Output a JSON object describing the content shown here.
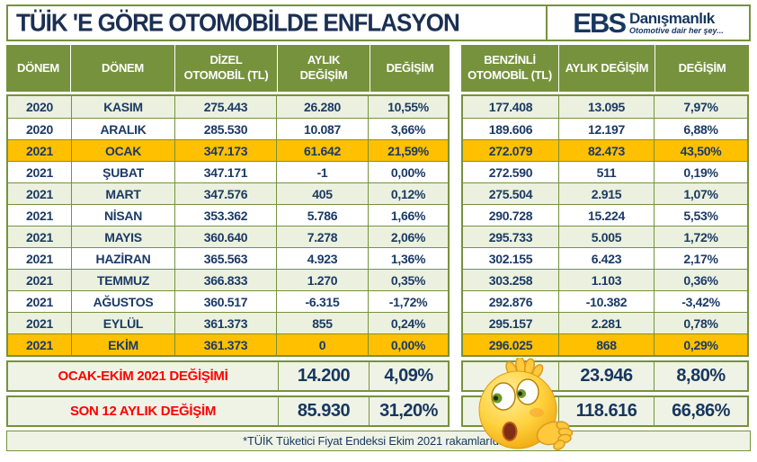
{
  "title": "TÜİK 'E GÖRE OTOMOBİLDE ENFLASYON",
  "logo": {
    "abbr": "EBS",
    "name": "Danışmanlık",
    "tagline": "Otomotive dair her şey..."
  },
  "chart_data": {
    "type": "table",
    "title": "TÜİK 'E GÖRE OTOMOBİLDE ENFLASYON",
    "columns": [
      "DÖNEM",
      "DÖNEM",
      "DİZEL OTOMOBİL (TL)",
      "AYLIK DEĞİŞİM",
      "DEĞİŞİM",
      "BENZİNLİ OTOMOBİL (TL)",
      "AYLIK DEĞİŞİM",
      "DEĞİŞİM"
    ],
    "rows": [
      {
        "year": "2020",
        "month": "KASIM",
        "dizel": "275.443",
        "dizel_aylik": "26.280",
        "dizel_pct": "10,55%",
        "benzin": "177.408",
        "benzin_aylik": "13.095",
        "benzin_pct": "7,97%",
        "highlight": false
      },
      {
        "year": "2020",
        "month": "ARALIK",
        "dizel": "285.530",
        "dizel_aylik": "10.087",
        "dizel_pct": "3,66%",
        "benzin": "189.606",
        "benzin_aylik": "12.197",
        "benzin_pct": "6,88%",
        "highlight": false
      },
      {
        "year": "2021",
        "month": "OCAK",
        "dizel": "347.173",
        "dizel_aylik": "61.642",
        "dizel_pct": "21,59%",
        "benzin": "272.079",
        "benzin_aylik": "82.473",
        "benzin_pct": "43,50%",
        "highlight": true
      },
      {
        "year": "2021",
        "month": "ŞUBAT",
        "dizel": "347.171",
        "dizel_aylik": "-1",
        "dizel_pct": "0,00%",
        "benzin": "272.590",
        "benzin_aylik": "511",
        "benzin_pct": "0,19%",
        "highlight": false
      },
      {
        "year": "2021",
        "month": "MART",
        "dizel": "347.576",
        "dizel_aylik": "405",
        "dizel_pct": "0,12%",
        "benzin": "275.504",
        "benzin_aylik": "2.915",
        "benzin_pct": "1,07%",
        "highlight": false
      },
      {
        "year": "2021",
        "month": "NİSAN",
        "dizel": "353.362",
        "dizel_aylik": "5.786",
        "dizel_pct": "1,66%",
        "benzin": "290.728",
        "benzin_aylik": "15.224",
        "benzin_pct": "5,53%",
        "highlight": false
      },
      {
        "year": "2021",
        "month": "MAYIS",
        "dizel": "360.640",
        "dizel_aylik": "7.278",
        "dizel_pct": "2,06%",
        "benzin": "295.733",
        "benzin_aylik": "5.005",
        "benzin_pct": "1,72%",
        "highlight": false
      },
      {
        "year": "2021",
        "month": "HAZİRAN",
        "dizel": "365.563",
        "dizel_aylik": "4.923",
        "dizel_pct": "1,36%",
        "benzin": "302.155",
        "benzin_aylik": "6.423",
        "benzin_pct": "2,17%",
        "highlight": false
      },
      {
        "year": "2021",
        "month": "TEMMUZ",
        "dizel": "366.833",
        "dizel_aylik": "1.270",
        "dizel_pct": "0,35%",
        "benzin": "303.258",
        "benzin_aylik": "1.103",
        "benzin_pct": "0,36%",
        "highlight": false
      },
      {
        "year": "2021",
        "month": "AĞUSTOS",
        "dizel": "360.517",
        "dizel_aylik": "-6.315",
        "dizel_pct": "-1,72%",
        "benzin": "292.876",
        "benzin_aylik": "-10.382",
        "benzin_pct": "-3,42%",
        "highlight": false
      },
      {
        "year": "2021",
        "month": "EYLÜL",
        "dizel": "361.373",
        "dizel_aylik": "855",
        "dizel_pct": "0,24%",
        "benzin": "295.157",
        "benzin_aylik": "2.281",
        "benzin_pct": "0,78%",
        "highlight": false
      },
      {
        "year": "2021",
        "month": "EKİM",
        "dizel": "361.373",
        "dizel_aylik": "0",
        "dizel_pct": "0,00%",
        "benzin": "296.025",
        "benzin_aylik": "868",
        "benzin_pct": "0,29%",
        "highlight": true
      }
    ],
    "summary": [
      {
        "label": "OCAK-EKİM 2021 DEĞİŞİMİ",
        "dizel_aylik": "14.200",
        "dizel_pct": "4,09%",
        "benzin_aylik": "23.946",
        "benzin_pct": "8,80%"
      },
      {
        "label": "SON 12 AYLIK DEĞİŞİM",
        "dizel_aylik": "85.930",
        "dizel_pct": "31,20%",
        "benzin_aylik": "118.616",
        "benzin_pct": "66,86%"
      }
    ],
    "footnote": "*TÜİK Tüketici Fiyat Endeksi Ekim 2021 rakamlarıdır..."
  },
  "colors": {
    "header_green": "#76923C",
    "row_tint_green": "#EBF1DE",
    "summary_bg": "#EFF3E6",
    "highlight_orange": "#FFC000",
    "text_navy": "#17375E",
    "summary_label_red": "#FF0000",
    "border_green": "#76923C"
  },
  "icons": {
    "emoji": "confused-face-emoji"
  }
}
